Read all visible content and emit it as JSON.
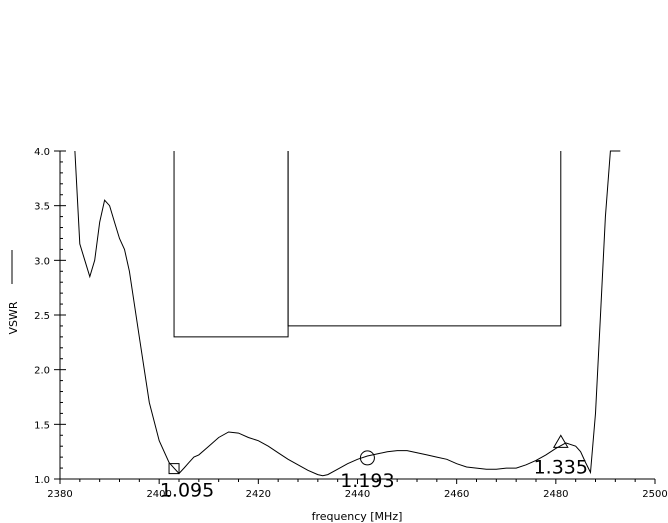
{
  "chart_data": {
    "type": "line",
    "xlabel": "frequency [MHz]",
    "ylabel": "VSWR",
    "xlim": [
      2380,
      2500
    ],
    "ylim": [
      1.0,
      4.0
    ],
    "x_ticks": [
      "2380",
      "2400",
      "2420",
      "2440",
      "2460",
      "2480",
      "2500"
    ],
    "y_ticks": [
      "1.0",
      "1.5",
      "2.0",
      "2.5",
      "3.0",
      "3.5",
      "4.0"
    ],
    "x_tick_values": [
      2380,
      2400,
      2420,
      2440,
      2460,
      2480,
      2500
    ],
    "y_tick_values": [
      1.0,
      1.5,
      2.0,
      2.5,
      3.0,
      3.5,
      4.0
    ],
    "grid": false,
    "series": [
      {
        "x": [
          2383,
          2384,
          2385,
          2386,
          2387,
          2388,
          2389,
          2390,
          2391,
          2392,
          2393,
          2394,
          2396,
          2398,
          2400,
          2402,
          2403,
          2404,
          2405,
          2406,
          2407,
          2408,
          2410,
          2412,
          2414,
          2416,
          2418,
          2420,
          2422,
          2424,
          2426,
          2428,
          2430,
          2432,
          2433,
          2434,
          2436,
          2438,
          2440,
          2442,
          2444,
          2446,
          2448,
          2450,
          2452,
          2454,
          2456,
          2458,
          2460,
          2462,
          2464,
          2466,
          2468,
          2470,
          2472,
          2474,
          2476,
          2478,
          2480,
          2482,
          2484,
          2485,
          2486,
          2487,
          2488,
          2489,
          2490,
          2491,
          2492,
          2493
        ],
        "y": [
          4.0,
          3.15,
          3.0,
          2.85,
          3.0,
          3.35,
          3.55,
          3.5,
          3.35,
          3.2,
          3.1,
          2.9,
          2.3,
          1.7,
          1.35,
          1.15,
          1.1,
          1.05,
          1.1,
          1.15,
          1.2,
          1.22,
          1.3,
          1.38,
          1.43,
          1.42,
          1.38,
          1.35,
          1.3,
          1.24,
          1.18,
          1.13,
          1.08,
          1.04,
          1.03,
          1.04,
          1.09,
          1.14,
          1.18,
          1.21,
          1.23,
          1.25,
          1.26,
          1.26,
          1.24,
          1.22,
          1.2,
          1.18,
          1.14,
          1.11,
          1.1,
          1.09,
          1.09,
          1.1,
          1.1,
          1.13,
          1.17,
          1.22,
          1.28,
          1.33,
          1.3,
          1.25,
          1.15,
          1.06,
          1.6,
          2.5,
          3.4,
          4.0,
          4.0,
          4.0
        ]
      }
    ],
    "masks": [
      {
        "x_start": 2403,
        "x_end": 2426,
        "y": 2.3
      },
      {
        "x_start": 2426,
        "x_end": 2481,
        "y": 2.4
      }
    ],
    "markers": [
      {
        "shape": "square",
        "x": 2403,
        "y": 1.095,
        "label": "1.095"
      },
      {
        "shape": "circle",
        "x": 2442,
        "y": 1.193,
        "label": "1.193"
      },
      {
        "shape": "triangle",
        "x": 2481,
        "y": 1.335,
        "label": "1.335"
      }
    ]
  }
}
